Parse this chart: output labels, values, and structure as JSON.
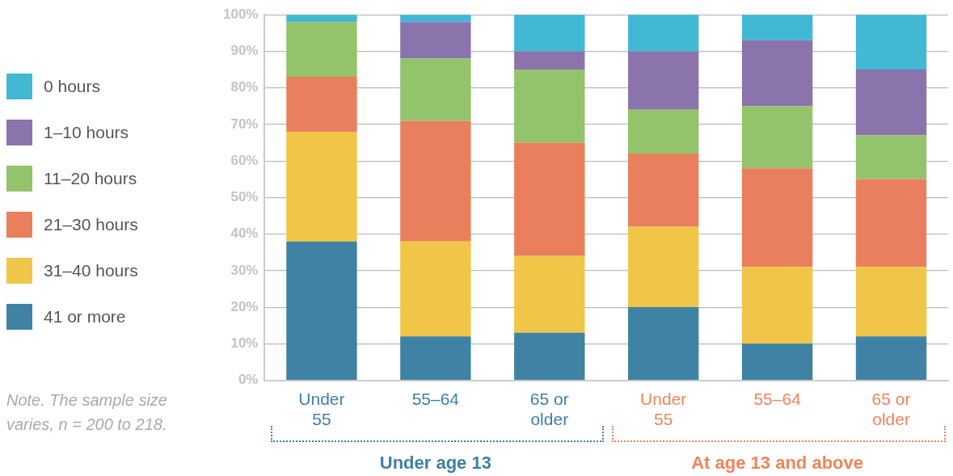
{
  "chart_data": {
    "type": "bar",
    "stacked": true,
    "categories": [
      "Under 55",
      "55–64",
      "65 or older",
      "Under 55",
      "55–64",
      "65 or older"
    ],
    "series": [
      {
        "name": "41 or more",
        "color": "#3f82a3",
        "values": [
          38,
          12,
          13,
          20,
          10,
          12
        ]
      },
      {
        "name": "31–40 hours",
        "color": "#f1c547",
        "values": [
          30,
          26,
          21,
          22,
          21,
          19
        ]
      },
      {
        "name": "21–30 hours",
        "color": "#e97f5c",
        "values": [
          15,
          33,
          31,
          20,
          27,
          24
        ]
      },
      {
        "name": "11–20 hours",
        "color": "#93c36b",
        "values": [
          15,
          17,
          20,
          12,
          17,
          12
        ]
      },
      {
        "name": "1–10 hours",
        "color": "#8a74ab",
        "values": [
          0,
          10,
          5,
          16,
          18,
          18
        ]
      },
      {
        "name": "0 hours",
        "color": "#41b8d4",
        "values": [
          2,
          2,
          10,
          10,
          7,
          15
        ]
      }
    ],
    "ylim": [
      0,
      100
    ],
    "yticks": [
      {
        "value": 0,
        "label": "0%"
      },
      {
        "value": 10,
        "label": "10%"
      },
      {
        "value": 20,
        "label": "20%"
      },
      {
        "value": 30,
        "label": "30%"
      },
      {
        "value": 40,
        "label": "40%"
      },
      {
        "value": 50,
        "label": "50%"
      },
      {
        "value": 60,
        "label": "60%"
      },
      {
        "value": 70,
        "label": "70%"
      },
      {
        "value": 80,
        "label": "80%"
      },
      {
        "value": 90,
        "label": "90%"
      },
      {
        "value": 100,
        "label": "100%"
      }
    ],
    "grid": "y",
    "legend": "left",
    "annotations": [
      "Under age 13",
      "At age 13 and above",
      "Note. The sample size varies, n = 200 to 218."
    ]
  }
}
